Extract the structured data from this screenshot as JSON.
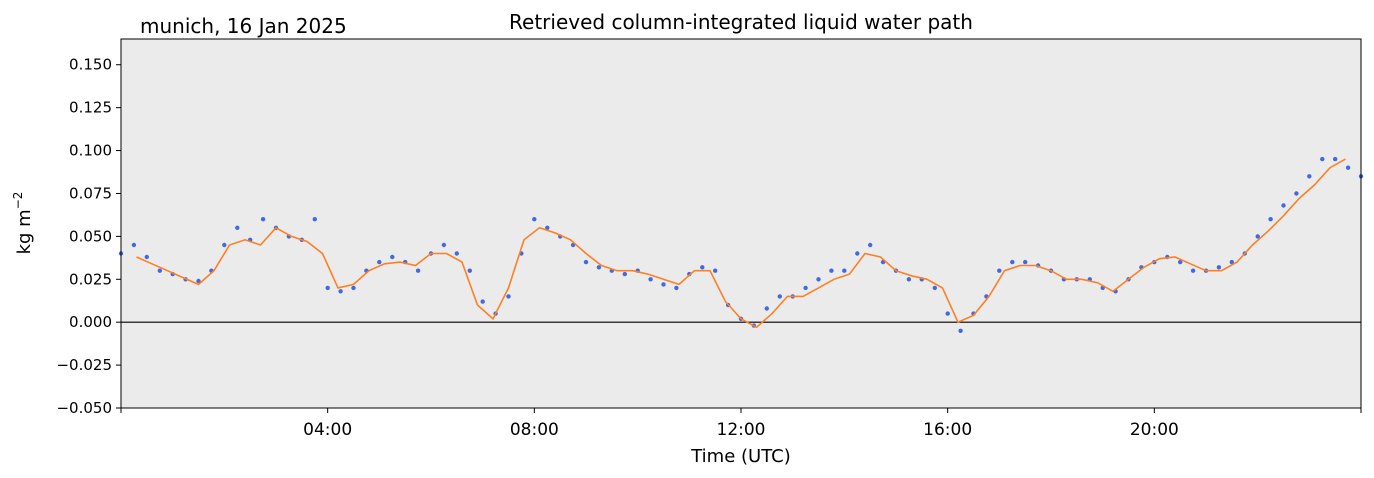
{
  "chart_data": {
    "type": "scatter",
    "title": "Retrieved column-integrated liquid water path",
    "subtitle": "munich, 16 Jan 2025",
    "xlabel": "Time (UTC)",
    "ylabel": "kg m",
    "ylabel_exponent": "−2",
    "xlim_hours": [
      0,
      24
    ],
    "ylim": [
      -0.05,
      0.165
    ],
    "x_ticks": [
      {
        "hour": 4,
        "label": "04:00"
      },
      {
        "hour": 8,
        "label": "08:00"
      },
      {
        "hour": 12,
        "label": "12:00"
      },
      {
        "hour": 16,
        "label": "16:00"
      },
      {
        "hour": 20,
        "label": "20:00"
      }
    ],
    "y_ticks": [
      {
        "value": -0.05,
        "label": "−0.050"
      },
      {
        "value": -0.025,
        "label": "−0.025"
      },
      {
        "value": 0.0,
        "label": "0.000"
      },
      {
        "value": 0.025,
        "label": "0.025"
      },
      {
        "value": 0.05,
        "label": "0.050"
      },
      {
        "value": 0.075,
        "label": "0.075"
      },
      {
        "value": 0.1,
        "label": "0.100"
      },
      {
        "value": 0.125,
        "label": "0.125"
      },
      {
        "value": 0.15,
        "label": "0.150"
      }
    ],
    "grid": false,
    "background_color": "#ebebeb",
    "zero_line": true,
    "series": [
      {
        "kind": "scatter",
        "color": "#4169e1",
        "x_hours": [
          0.0,
          0.25,
          0.5,
          0.75,
          1.0,
          1.25,
          1.5,
          1.75,
          2.0,
          2.25,
          2.5,
          2.75,
          3.0,
          3.25,
          3.5,
          3.75,
          4.0,
          4.25,
          4.5,
          4.75,
          5.0,
          5.25,
          5.5,
          5.75,
          6.0,
          6.25,
          6.5,
          6.75,
          7.0,
          7.25,
          7.5,
          7.75,
          8.0,
          8.25,
          8.5,
          8.75,
          9.0,
          9.25,
          9.5,
          9.75,
          10.0,
          10.25,
          10.5,
          10.75,
          11.0,
          11.25,
          11.5,
          11.75,
          12.0,
          12.25,
          12.5,
          12.75,
          13.0,
          13.25,
          13.5,
          13.75,
          14.0,
          14.25,
          14.5,
          14.75,
          15.0,
          15.25,
          15.5,
          15.75,
          16.0,
          16.25,
          16.5,
          16.75,
          17.0,
          17.25,
          17.5,
          17.75,
          18.0,
          18.25,
          18.5,
          18.75,
          19.0,
          19.25,
          19.5,
          19.75,
          20.0,
          20.25,
          20.5,
          20.75,
          21.0,
          21.25,
          21.5,
          21.75,
          22.0,
          22.25,
          22.5,
          22.75,
          23.0,
          23.25,
          23.5,
          23.75,
          24.0
        ],
        "y": [
          0.04,
          0.045,
          0.038,
          0.03,
          0.028,
          0.025,
          0.024,
          0.03,
          0.045,
          0.055,
          0.048,
          0.06,
          0.055,
          0.05,
          0.048,
          0.06,
          0.02,
          0.018,
          0.02,
          0.03,
          0.035,
          0.038,
          0.035,
          0.03,
          0.04,
          0.045,
          0.04,
          0.03,
          0.012,
          0.005,
          0.015,
          0.04,
          0.06,
          0.055,
          0.05,
          0.045,
          0.035,
          0.032,
          0.03,
          0.028,
          0.03,
          0.025,
          0.022,
          0.02,
          0.028,
          0.032,
          0.03,
          0.01,
          0.002,
          -0.002,
          0.008,
          0.015,
          0.015,
          0.02,
          0.025,
          0.03,
          0.03,
          0.04,
          0.045,
          0.035,
          0.03,
          0.025,
          0.025,
          0.02,
          0.005,
          -0.005,
          0.005,
          0.015,
          0.03,
          0.035,
          0.035,
          0.033,
          0.03,
          0.025,
          0.025,
          0.025,
          0.02,
          0.018,
          0.025,
          0.032,
          0.035,
          0.038,
          0.035,
          0.03,
          0.03,
          0.032,
          0.035,
          0.04,
          0.05,
          0.06,
          0.068,
          0.075,
          0.085,
          0.095,
          0.095,
          0.09,
          0.085
        ]
      },
      {
        "kind": "line",
        "color": "#ff7f24",
        "x_hours": [
          0.3,
          0.6,
          0.9,
          1.2,
          1.5,
          1.8,
          2.1,
          2.4,
          2.7,
          3.0,
          3.3,
          3.6,
          3.9,
          4.2,
          4.5,
          4.8,
          5.1,
          5.4,
          5.7,
          6.0,
          6.3,
          6.6,
          6.9,
          7.2,
          7.5,
          7.8,
          8.1,
          8.4,
          8.7,
          9.0,
          9.3,
          9.6,
          9.9,
          10.2,
          10.5,
          10.8,
          11.1,
          11.4,
          11.7,
          12.0,
          12.3,
          12.6,
          12.9,
          13.2,
          13.5,
          13.8,
          14.1,
          14.4,
          14.7,
          15.0,
          15.3,
          15.6,
          15.9,
          16.2,
          16.5,
          16.8,
          17.1,
          17.4,
          17.7,
          18.0,
          18.3,
          18.6,
          18.9,
          19.2,
          19.5,
          19.8,
          20.1,
          20.4,
          20.7,
          21.0,
          21.3,
          21.6,
          21.9,
          22.2,
          22.5,
          22.8,
          23.1,
          23.4,
          23.7
        ],
        "y": [
          0.038,
          0.034,
          0.03,
          0.026,
          0.022,
          0.03,
          0.045,
          0.048,
          0.045,
          0.055,
          0.05,
          0.047,
          0.04,
          0.02,
          0.022,
          0.03,
          0.034,
          0.035,
          0.033,
          0.04,
          0.04,
          0.035,
          0.01,
          0.002,
          0.02,
          0.048,
          0.055,
          0.052,
          0.048,
          0.04,
          0.033,
          0.03,
          0.03,
          0.028,
          0.025,
          0.022,
          0.03,
          0.03,
          0.012,
          0.002,
          -0.003,
          0.005,
          0.015,
          0.015,
          0.02,
          0.025,
          0.028,
          0.04,
          0.038,
          0.03,
          0.027,
          0.025,
          0.02,
          0.0,
          0.004,
          0.015,
          0.03,
          0.033,
          0.033,
          0.03,
          0.025,
          0.025,
          0.023,
          0.018,
          0.025,
          0.032,
          0.037,
          0.038,
          0.034,
          0.03,
          0.03,
          0.035,
          0.045,
          0.053,
          0.062,
          0.072,
          0.08,
          0.09,
          0.095
        ]
      }
    ]
  }
}
